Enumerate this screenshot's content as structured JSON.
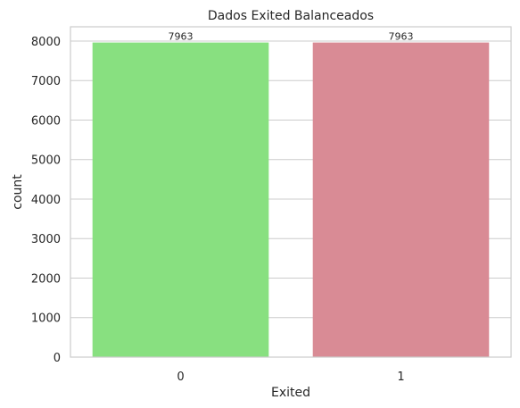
{
  "chart_data": {
    "type": "bar",
    "title": "Dados Exited Balanceados",
    "xlabel": "Exited",
    "ylabel": "count",
    "categories": [
      "0",
      "1"
    ],
    "values": [
      7963,
      7963
    ],
    "data_labels": [
      "7963",
      "7963"
    ],
    "yticks": [
      0,
      1000,
      2000,
      3000,
      4000,
      5000,
      6000,
      7000,
      8000
    ],
    "ylim": [
      0,
      8361
    ],
    "colors": [
      "#88e080",
      "#d98b95"
    ],
    "grid": true,
    "grid_axis": "y",
    "legend": false
  }
}
